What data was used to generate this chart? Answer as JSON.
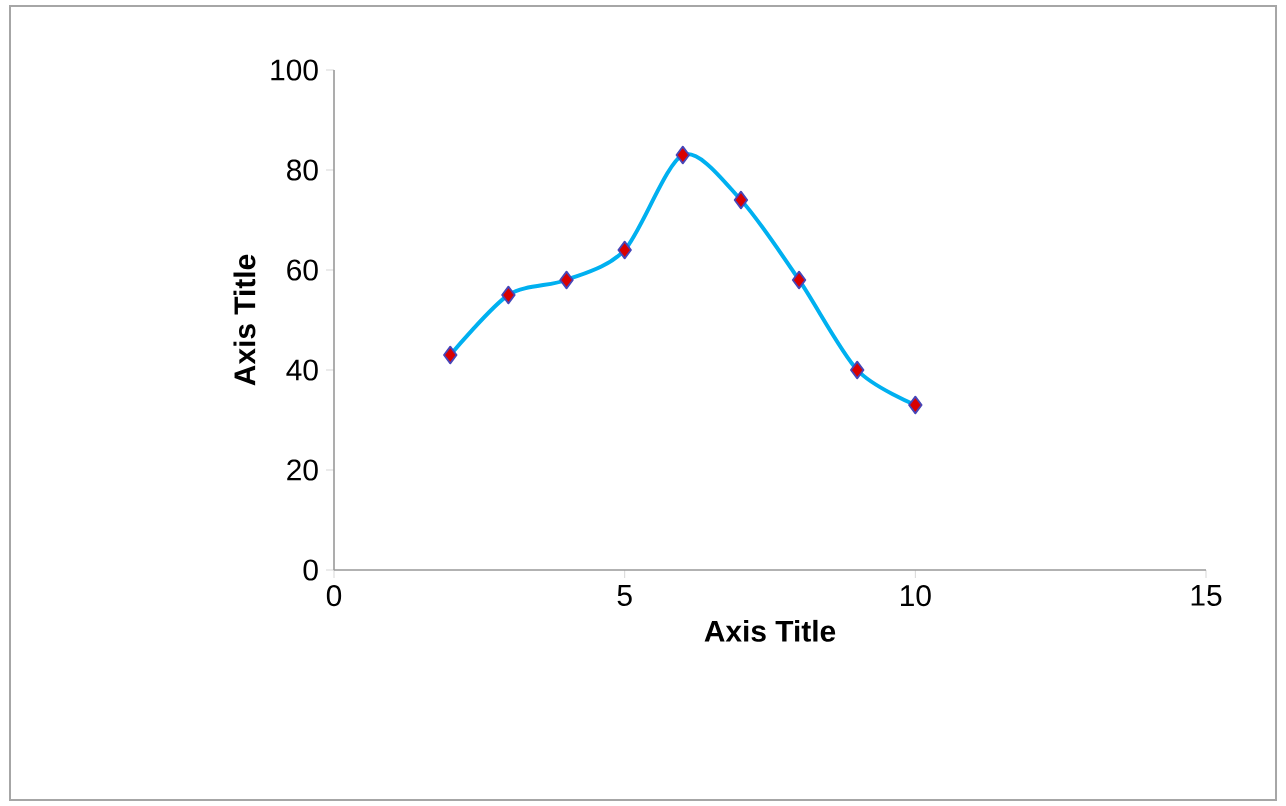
{
  "chart_data": {
    "type": "line",
    "xlabel": "Axis Title",
    "ylabel": "Axis Title",
    "x": [
      2,
      3,
      4,
      5,
      6,
      7,
      8,
      9,
      10
    ],
    "series": [
      {
        "color": "#00b0f0",
        "values": [
          43,
          55,
          58,
          64,
          83,
          74,
          58,
          40,
          33
        ]
      }
    ],
    "xlim": [
      0,
      15
    ],
    "xticks": [
      0,
      5,
      10,
      15
    ],
    "ylim": [
      0,
      100
    ],
    "yticks": [
      0,
      20,
      40,
      60,
      80,
      100
    ],
    "marker": "diamond",
    "line_style": "solid"
  }
}
